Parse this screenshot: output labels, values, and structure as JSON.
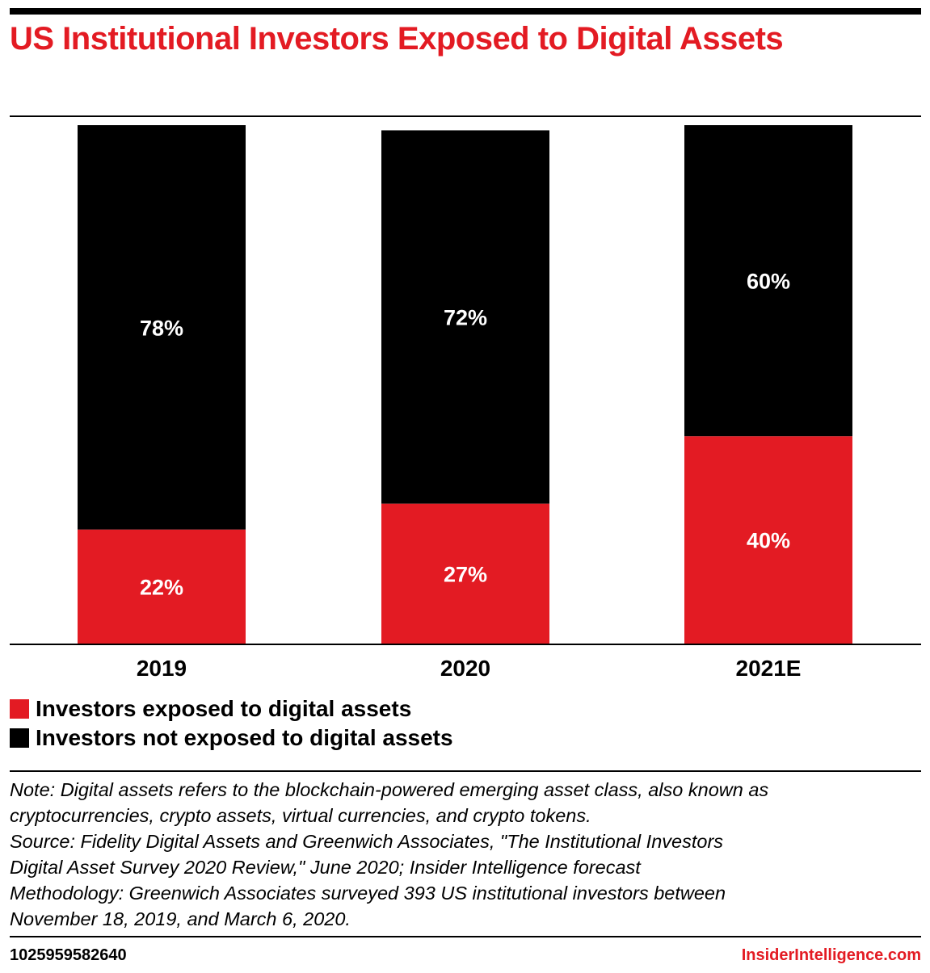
{
  "title": "US Institutional Investors Exposed to Digital Assets",
  "colors": {
    "exposed": "#e31b23",
    "not_exposed": "#000000",
    "title": "#e31b23"
  },
  "legend": [
    {
      "label": "Investors exposed to digital assets",
      "color": "#e31b23"
    },
    {
      "label": "Investors not exposed to digital assets",
      "color": "#000000"
    }
  ],
  "chart_data": {
    "type": "bar",
    "stacked": true,
    "title": "US Institutional Investors Exposed to Digital Assets",
    "categories": [
      "2019",
      "2020",
      "2021E"
    ],
    "series": [
      {
        "name": "Investors exposed to digital assets",
        "values": [
          22,
          27,
          40
        ],
        "labels": [
          "22%",
          "27%",
          "40%"
        ],
        "color": "#e31b23"
      },
      {
        "name": "Investors not exposed to digital assets",
        "values": [
          78,
          72,
          60
        ],
        "labels": [
          "78%",
          "72%",
          "60%"
        ],
        "color": "#000000"
      }
    ],
    "ylim": [
      0,
      100
    ],
    "grid": false,
    "legend_position": "bottom-left"
  },
  "notes": {
    "note_lines": [
      "Note: Digital assets refers to the blockchain-powered emerging asset class, also known as",
      "cryptocurrencies, crypto assets, virtual currencies, and crypto tokens."
    ],
    "source_lines": [
      "Source: Fidelity Digital Assets and Greenwich Associates, \"The Institutional Investors",
      "Digital Asset Survey 2020 Review,\" June 2020; Insider Intelligence forecast"
    ],
    "methodology_lines": [
      "Methodology: Greenwich Associates surveyed 393 US institutional investors between",
      "November 18, 2019, and March 6, 2020."
    ]
  },
  "footer": {
    "chart_id": "1025959582640",
    "brand": "InsiderIntelligence.com"
  }
}
